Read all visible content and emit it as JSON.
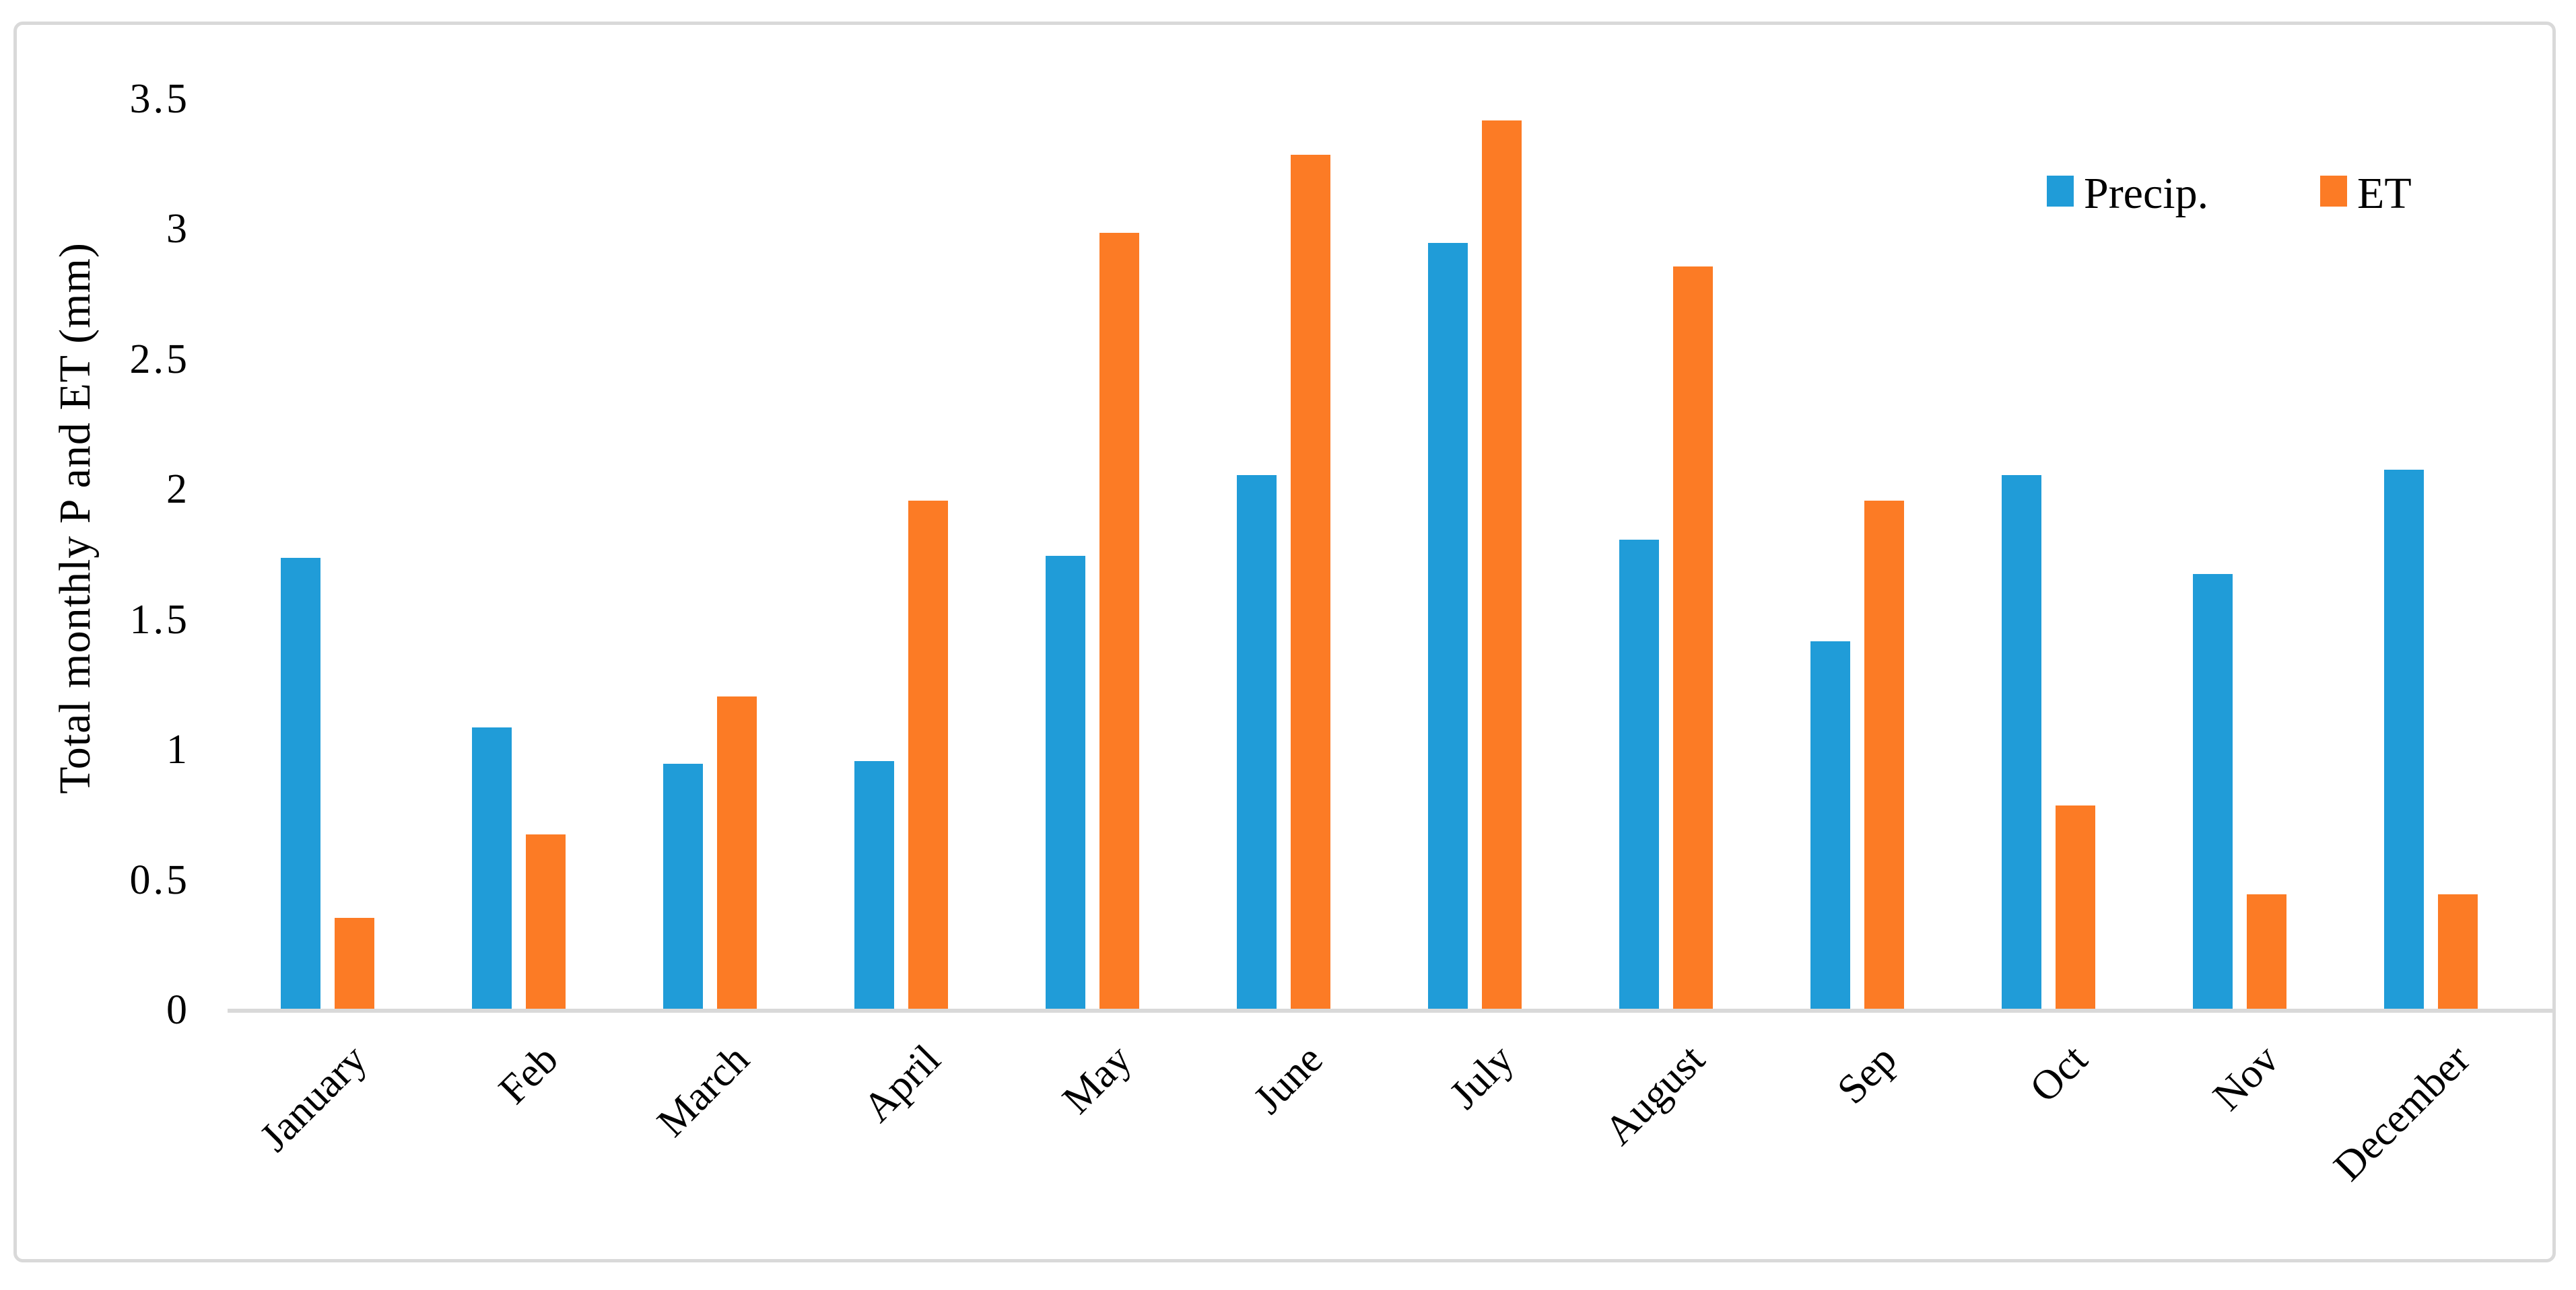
{
  "chart_data": {
    "type": "bar",
    "title": "",
    "xlabel": "",
    "ylabel": "Total monthly P and ET (mm)",
    "categories": [
      "January",
      "Feb",
      "March",
      "April",
      "May",
      "June",
      "July",
      "August",
      "Sep",
      "Oct",
      "Nov",
      "December"
    ],
    "series": [
      {
        "name": "Precip.",
        "color": "#209CD8",
        "values": [
          1.73,
          1.08,
          0.94,
          0.95,
          1.74,
          2.05,
          2.94,
          1.8,
          1.41,
          2.05,
          1.67,
          2.07
        ]
      },
      {
        "name": "ET",
        "color": "#FC7B25",
        "values": [
          0.35,
          0.67,
          1.2,
          1.95,
          2.98,
          3.28,
          3.41,
          2.85,
          1.95,
          0.78,
          0.44,
          0.44
        ]
      }
    ],
    "ylim": [
      0,
      3.5
    ],
    "yticks": {
      "values": [
        0,
        0.5,
        1,
        1.5,
        2,
        2.5,
        3,
        3.5
      ],
      "labels": [
        "0",
        "0.5",
        "1",
        "1.5",
        "2",
        "2.5",
        "3",
        "3.5"
      ]
    },
    "grid": false,
    "legend_position": "top-right",
    "axis_color": "#D9D9D9",
    "x_label_rotation_deg": -45
  }
}
